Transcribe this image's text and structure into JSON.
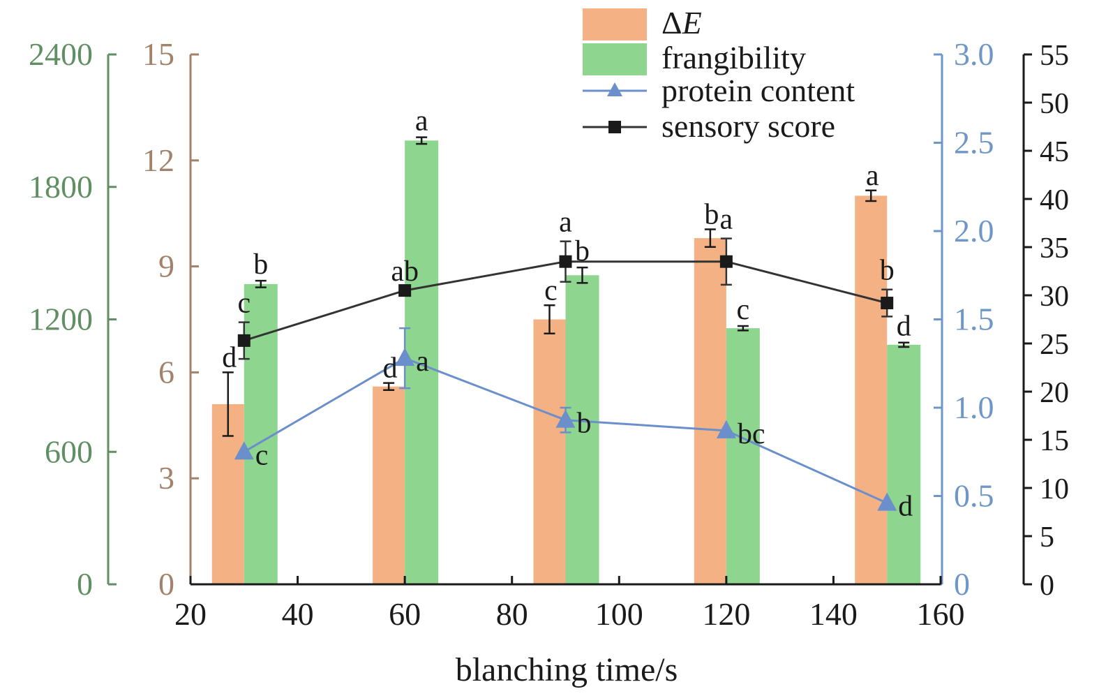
{
  "chart_data": {
    "type": "bar",
    "xlabel": "blanching time/s",
    "x_ticks": [
      "20",
      "40",
      "60",
      "80",
      "100",
      "120",
      "140",
      "160"
    ],
    "xlim": [
      20,
      160
    ],
    "x": [
      30,
      60,
      90,
      120,
      150
    ],
    "axes": {
      "frangibility": {
        "ylim": [
          0,
          2400
        ],
        "ticks": [
          "0",
          "600",
          "1200",
          "1800",
          "2400"
        ],
        "color": "#5f8f63"
      },
      "delta_e": {
        "ylim": [
          0,
          15
        ],
        "ticks": [
          "0",
          "3",
          "6",
          "9",
          "12",
          "15"
        ],
        "color": "#a2826a"
      },
      "protein": {
        "ylim": [
          0,
          3.0
        ],
        "ticks": [
          "0",
          "0.5",
          "1.0",
          "1.5",
          "2.0",
          "2.5",
          "3.0"
        ],
        "color": "#6e96c6"
      },
      "sensory": {
        "ylim": [
          0,
          55
        ],
        "ticks": [
          "0",
          "5",
          "10",
          "15",
          "20",
          "25",
          "30",
          "35",
          "40",
          "45",
          "50",
          "55"
        ],
        "color": "#1a1a1a"
      }
    },
    "series": [
      {
        "name": "ΔE",
        "kind": "bar",
        "axis": "delta_e",
        "color": "#f4b183",
        "values": [
          5.1,
          5.6,
          7.5,
          9.8,
          11.0
        ],
        "errors": [
          0.9,
          0.1,
          0.4,
          0.25,
          0.15
        ],
        "letters": [
          "d",
          "d",
          "c",
          "b",
          "a"
        ]
      },
      {
        "name": "frangibility",
        "kind": "bar",
        "axis": "frangibility",
        "color": "#8ed58f",
        "values": [
          1360,
          2010,
          1400,
          1160,
          1085
        ],
        "errors": [
          15,
          15,
          35,
          10,
          10
        ],
        "letters": [
          "b",
          "a",
          "b",
          "c",
          "d"
        ]
      },
      {
        "name": "protein content",
        "kind": "line",
        "marker": "triangle",
        "axis": "protein",
        "color": "#6a8fcb",
        "values": [
          0.75,
          1.28,
          0.93,
          0.87,
          0.46
        ],
        "errors": [
          0.0,
          0.17,
          0.07,
          0.0,
          0.0
        ],
        "letters": [
          "c",
          "a",
          "b",
          "bc",
          "d"
        ]
      },
      {
        "name": "sensory score",
        "kind": "line",
        "marker": "square",
        "axis": "sensory",
        "color": "#333333",
        "values": [
          25.3,
          30.5,
          33.5,
          33.5,
          29.2
        ],
        "errors": [
          1.9,
          0.0,
          2.1,
          2.4,
          1.4
        ],
        "letters": [
          "c",
          "ab",
          "a",
          "a",
          "b"
        ]
      }
    ],
    "legend": {
      "position": "top-right",
      "entries": [
        "ΔE",
        "frangibility",
        "protein content",
        "sensory score"
      ]
    }
  }
}
